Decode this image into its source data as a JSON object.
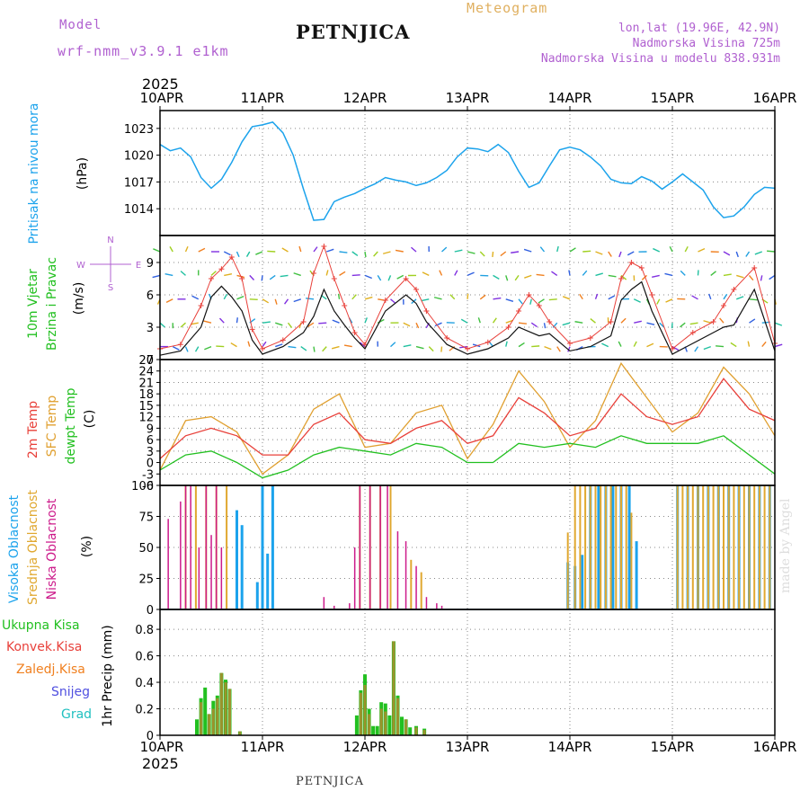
{
  "header": {
    "model_label": "Model",
    "model_name": "wrf-nmm_v3.9.1 e1km",
    "station": "PETNJICA",
    "product": "Meteogram",
    "lonlat": "lon,lat (19.96E, 42.9N)",
    "altitude": "Nadmorska Visina 725m",
    "model_altitude": "Nadmorska Visina u modelu 838.931m",
    "year": "2025",
    "footer_station": "PETNJICA",
    "watermark": "made by Angel"
  },
  "colors": {
    "pressure": "#1ca3ec",
    "temp2m": "#e8403a",
    "sfc": "#e0a030",
    "dewpt": "#22c020",
    "high_cloud": "#1ca3ec",
    "mid_cloud": "#e0a830",
    "low_cloud": "#cc1a8a",
    "total_precip": "#22c020",
    "conv_precip": "#e8403a",
    "frozen_precip": "#f08020",
    "snow": "#5050e0",
    "graupel": "#20c0c0",
    "wind_label": "#22c020",
    "dir_label": "#b060d0"
  },
  "chart_data": [
    {
      "type": "line",
      "name": "pressure",
      "ylabel_lines": [
        "Pritisak na nivou mora",
        "(hPa)"
      ],
      "x_ticks": [
        "10APR",
        "11APR",
        "12APR",
        "13APR",
        "14APR",
        "15APR",
        "16APR"
      ],
      "xlim_days": [
        0,
        6
      ],
      "ylim": [
        1011,
        1025
      ],
      "y_ticks": [
        1014,
        1017,
        1020,
        1023
      ],
      "grid": true,
      "x": [
        0,
        0.1,
        0.2,
        0.3,
        0.4,
        0.5,
        0.6,
        0.7,
        0.8,
        0.9,
        1.0,
        1.1,
        1.2,
        1.3,
        1.4,
        1.5,
        1.6,
        1.7,
        1.8,
        1.9,
        2.0,
        2.1,
        2.2,
        2.3,
        2.4,
        2.5,
        2.6,
        2.7,
        2.8,
        2.9,
        3.0,
        3.1,
        3.2,
        3.3,
        3.4,
        3.5,
        3.6,
        3.7,
        3.8,
        3.9,
        4.0,
        4.1,
        4.2,
        4.3,
        4.4,
        4.5,
        4.6,
        4.7,
        4.8,
        4.9,
        5.0,
        5.1,
        5.2,
        5.3,
        5.4,
        5.5,
        5.6,
        5.7,
        5.8,
        5.9,
        6.0
      ],
      "values": [
        1021.2,
        1020.5,
        1020.8,
        1019.8,
        1017.5,
        1016.3,
        1017.3,
        1019.2,
        1021.5,
        1023.2,
        1023.4,
        1023.7,
        1022.5,
        1020.0,
        1016.2,
        1012.7,
        1012.8,
        1014.8,
        1015.3,
        1015.7,
        1016.3,
        1016.8,
        1017.5,
        1017.2,
        1017.0,
        1016.6,
        1016.9,
        1017.5,
        1018.3,
        1019.8,
        1020.8,
        1020.7,
        1020.4,
        1021.2,
        1020.3,
        1018.2,
        1016.4,
        1016.9,
        1018.8,
        1020.6,
        1020.9,
        1020.6,
        1019.8,
        1018.8,
        1017.3,
        1016.9,
        1016.8,
        1017.6,
        1017.1,
        1016.2,
        1017.0,
        1017.9,
        1017.0,
        1016.1,
        1014.2,
        1013.0,
        1013.2,
        1014.2,
        1015.6,
        1016.4,
        1016.3
      ]
    },
    {
      "type": "line",
      "name": "wind",
      "ylabel_lines": [
        "10m Vjetar",
        "Brzina i Pravac",
        "(m/s)"
      ],
      "dir_key": {
        "n": "N",
        "s": "S",
        "e": "E",
        "w": "W"
      },
      "xlim_days": [
        0,
        6
      ],
      "ylim": [
        0,
        11.5
      ],
      "y_ticks": [
        0,
        3,
        6,
        9
      ],
      "grid": true,
      "x": [
        0,
        0.2,
        0.4,
        0.5,
        0.6,
        0.7,
        0.8,
        0.9,
        1.0,
        1.2,
        1.4,
        1.5,
        1.6,
        1.7,
        1.8,
        1.9,
        2.0,
        2.2,
        2.4,
        2.5,
        2.6,
        2.8,
        3.0,
        3.2,
        3.4,
        3.5,
        3.6,
        3.7,
        3.8,
        4.0,
        4.2,
        4.4,
        4.5,
        4.6,
        4.7,
        4.8,
        5.0,
        5.2,
        5.4,
        5.5,
        5.6,
        5.8,
        6.0
      ],
      "series": [
        {
          "name": "speed",
          "values": [
            0.4,
            0.8,
            3.0,
            5.8,
            6.8,
            5.8,
            4.5,
            1.8,
            0.5,
            1.2,
            2.5,
            4.0,
            6.5,
            4.5,
            3.2,
            2.0,
            1.0,
            4.5,
            6.0,
            5.2,
            3.5,
            1.4,
            0.5,
            1.0,
            2.0,
            3.0,
            2.6,
            2.2,
            2.4,
            0.8,
            1.2,
            2.2,
            5.5,
            6.5,
            7.2,
            4.5,
            0.5,
            1.5,
            2.5,
            3.0,
            3.2,
            6.5,
            0.8
          ]
        },
        {
          "name": "gust",
          "values": [
            1.0,
            1.4,
            5.0,
            7.5,
            8.4,
            9.5,
            7.5,
            2.8,
            1.0,
            1.8,
            3.5,
            8.0,
            10.5,
            7.5,
            5.0,
            2.5,
            1.4,
            5.5,
            7.5,
            6.5,
            4.5,
            2.0,
            1.0,
            1.6,
            3.0,
            4.5,
            6.0,
            5.0,
            3.5,
            1.5,
            2.0,
            3.5,
            7.5,
            9.0,
            8.5,
            6.0,
            1.0,
            2.5,
            3.5,
            5.0,
            6.5,
            8.5,
            1.5
          ]
        }
      ]
    },
    {
      "type": "line",
      "name": "temperature",
      "ylabel_lines": [
        "2m Temp",
        "SFC Temp",
        "dewpt Temp",
        "(C)"
      ],
      "xlim_days": [
        0,
        6
      ],
      "ylim": [
        -6,
        27
      ],
      "y_ticks": [
        -6,
        -3,
        0,
        3,
        6,
        9,
        12,
        15,
        18,
        21,
        24,
        27
      ],
      "grid": true,
      "x": [
        0,
        0.25,
        0.5,
        0.75,
        1.0,
        1.25,
        1.5,
        1.75,
        2.0,
        2.25,
        2.5,
        2.75,
        3.0,
        3.25,
        3.5,
        3.75,
        4.0,
        4.25,
        4.5,
        4.75,
        5.0,
        5.25,
        5.5,
        5.75,
        6.0
      ],
      "series": [
        {
          "name": "2m Temp",
          "values": [
            1,
            7,
            9,
            7,
            2,
            2,
            10,
            13,
            6,
            5,
            9,
            11,
            5,
            7,
            17,
            13,
            7,
            9,
            18,
            12,
            10,
            12,
            22,
            14,
            11
          ]
        },
        {
          "name": "SFC Temp",
          "values": [
            -2,
            11,
            12,
            8,
            -3,
            2,
            14,
            18,
            4,
            5,
            13,
            15,
            1,
            10,
            24,
            16,
            4,
            11,
            26,
            17,
            8,
            13,
            25,
            18,
            7
          ]
        },
        {
          "name": "dewpt Temp",
          "values": [
            -2,
            2,
            3,
            0,
            -4,
            -2,
            2,
            4,
            3,
            2,
            5,
            4,
            0,
            0,
            5,
            4,
            5,
            4,
            7,
            5,
            5,
            5,
            7,
            2,
            -3
          ]
        }
      ]
    },
    {
      "type": "bar",
      "name": "clouds",
      "ylabel_lines": [
        "Visoka Oblacnost",
        "Srednja Oblacnost",
        "Niska Oblacnost",
        "(%)"
      ],
      "xlim_days": [
        0,
        6
      ],
      "ylim": [
        0,
        100
      ],
      "y_ticks": [
        0,
        25,
        50,
        75,
        100
      ],
      "grid": true,
      "series": [
        {
          "name": "Visoka Oblacnost",
          "x": [
            0.75,
            0.8,
            0.95,
            1.0,
            1.05,
            1.1,
            3.98,
            4.05,
            4.12,
            4.2,
            4.28,
            4.35,
            4.42,
            4.5,
            4.58,
            4.65,
            5.05,
            5.15,
            5.25,
            5.35,
            5.45,
            5.55,
            5.65,
            5.75,
            5.85,
            5.95
          ],
          "values": [
            80,
            68,
            22,
            100,
            45,
            100,
            38,
            35,
            44,
            100,
            100,
            100,
            100,
            100,
            100,
            55,
            100,
            100,
            100,
            100,
            100,
            100,
            100,
            100,
            100,
            100
          ]
        },
        {
          "name": "Srednja Oblacnost",
          "x": [
            0.25,
            0.35,
            0.45,
            0.55,
            0.65,
            1.95,
            2.05,
            2.15,
            2.25,
            2.45,
            2.55,
            3.98,
            4.05,
            4.1,
            4.15,
            4.2,
            4.25,
            4.3,
            4.35,
            4.4,
            4.45,
            4.5,
            4.55,
            4.6,
            5.05,
            5.1,
            5.15,
            5.2,
            5.25,
            5.3,
            5.35,
            5.4,
            5.45,
            5.5,
            5.55,
            5.6,
            5.65,
            5.7,
            5.75,
            5.8,
            5.85,
            5.9,
            5.95
          ],
          "values": [
            100,
            100,
            100,
            100,
            100,
            100,
            100,
            100,
            100,
            40,
            30,
            62,
            100,
            100,
            100,
            100,
            100,
            100,
            100,
            100,
            100,
            100,
            100,
            78,
            100,
            100,
            100,
            100,
            100,
            100,
            100,
            100,
            100,
            100,
            100,
            100,
            100,
            100,
            100,
            100,
            100,
            100,
            100
          ]
        },
        {
          "name": "Niska Oblacnost",
          "x": [
            0.08,
            0.2,
            0.25,
            0.3,
            0.38,
            0.45,
            0.5,
            0.55,
            0.6,
            1.6,
            1.7,
            1.85,
            1.9,
            1.95,
            2.05,
            2.15,
            2.22,
            2.32,
            2.4,
            2.5,
            2.6,
            2.7,
            2.75
          ],
          "values": [
            73,
            87,
            100,
            100,
            50,
            100,
            60,
            100,
            50,
            10,
            3,
            5,
            50,
            100,
            100,
            100,
            100,
            63,
            55,
            35,
            10,
            5,
            3
          ]
        }
      ]
    },
    {
      "type": "bar",
      "name": "precipitation",
      "ylabel_lines": [
        "1hr Precip (mm)"
      ],
      "legend": [
        "Ukupna Kisa",
        "Konvek.Kisa",
        "Zaledj.Kisa",
        "Snijeg",
        "Grad"
      ],
      "legend_position": "left",
      "xlim_days": [
        0,
        6
      ],
      "ylim": [
        0,
        0.95
      ],
      "y_ticks": [
        0,
        0.2,
        0.4,
        0.6,
        0.8
      ],
      "grid": true,
      "series": [
        {
          "name": "Ukupna Kisa",
          "x": [
            0.36,
            0.4,
            0.44,
            0.48,
            0.52,
            0.56,
            0.6,
            0.64,
            0.68,
            0.78,
            1.92,
            1.96,
            2.0,
            2.04,
            2.08,
            2.12,
            2.16,
            2.2,
            2.24,
            2.28,
            2.32,
            2.36,
            2.4,
            2.44,
            2.5,
            2.58
          ],
          "values": [
            0.12,
            0.28,
            0.36,
            0.16,
            0.26,
            0.3,
            0.47,
            0.42,
            0.35,
            0.03,
            0.15,
            0.34,
            0.46,
            0.2,
            0.07,
            0.07,
            0.25,
            0.24,
            0.15,
            0.71,
            0.3,
            0.14,
            0.12,
            0.06,
            0.07,
            0.05
          ]
        },
        {
          "name": "Konvek.Kisa",
          "x": [
            0.4,
            0.48,
            0.52,
            0.56,
            0.6,
            0.64,
            0.68,
            0.78,
            1.96,
            2.0,
            2.04,
            2.16,
            2.2,
            2.28,
            2.32,
            2.4,
            2.5,
            2.58
          ],
          "values": [
            0.25,
            0.16,
            0.2,
            0.28,
            0.47,
            0.4,
            0.35,
            0.03,
            0.32,
            0.38,
            0.16,
            0.2,
            0.18,
            0.71,
            0.28,
            0.12,
            0.06,
            0.04
          ]
        }
      ],
      "bottom_x_ticks": [
        "10APR",
        "11APR",
        "12APR",
        "13APR",
        "14APR",
        "15APR",
        "16APR"
      ]
    }
  ]
}
